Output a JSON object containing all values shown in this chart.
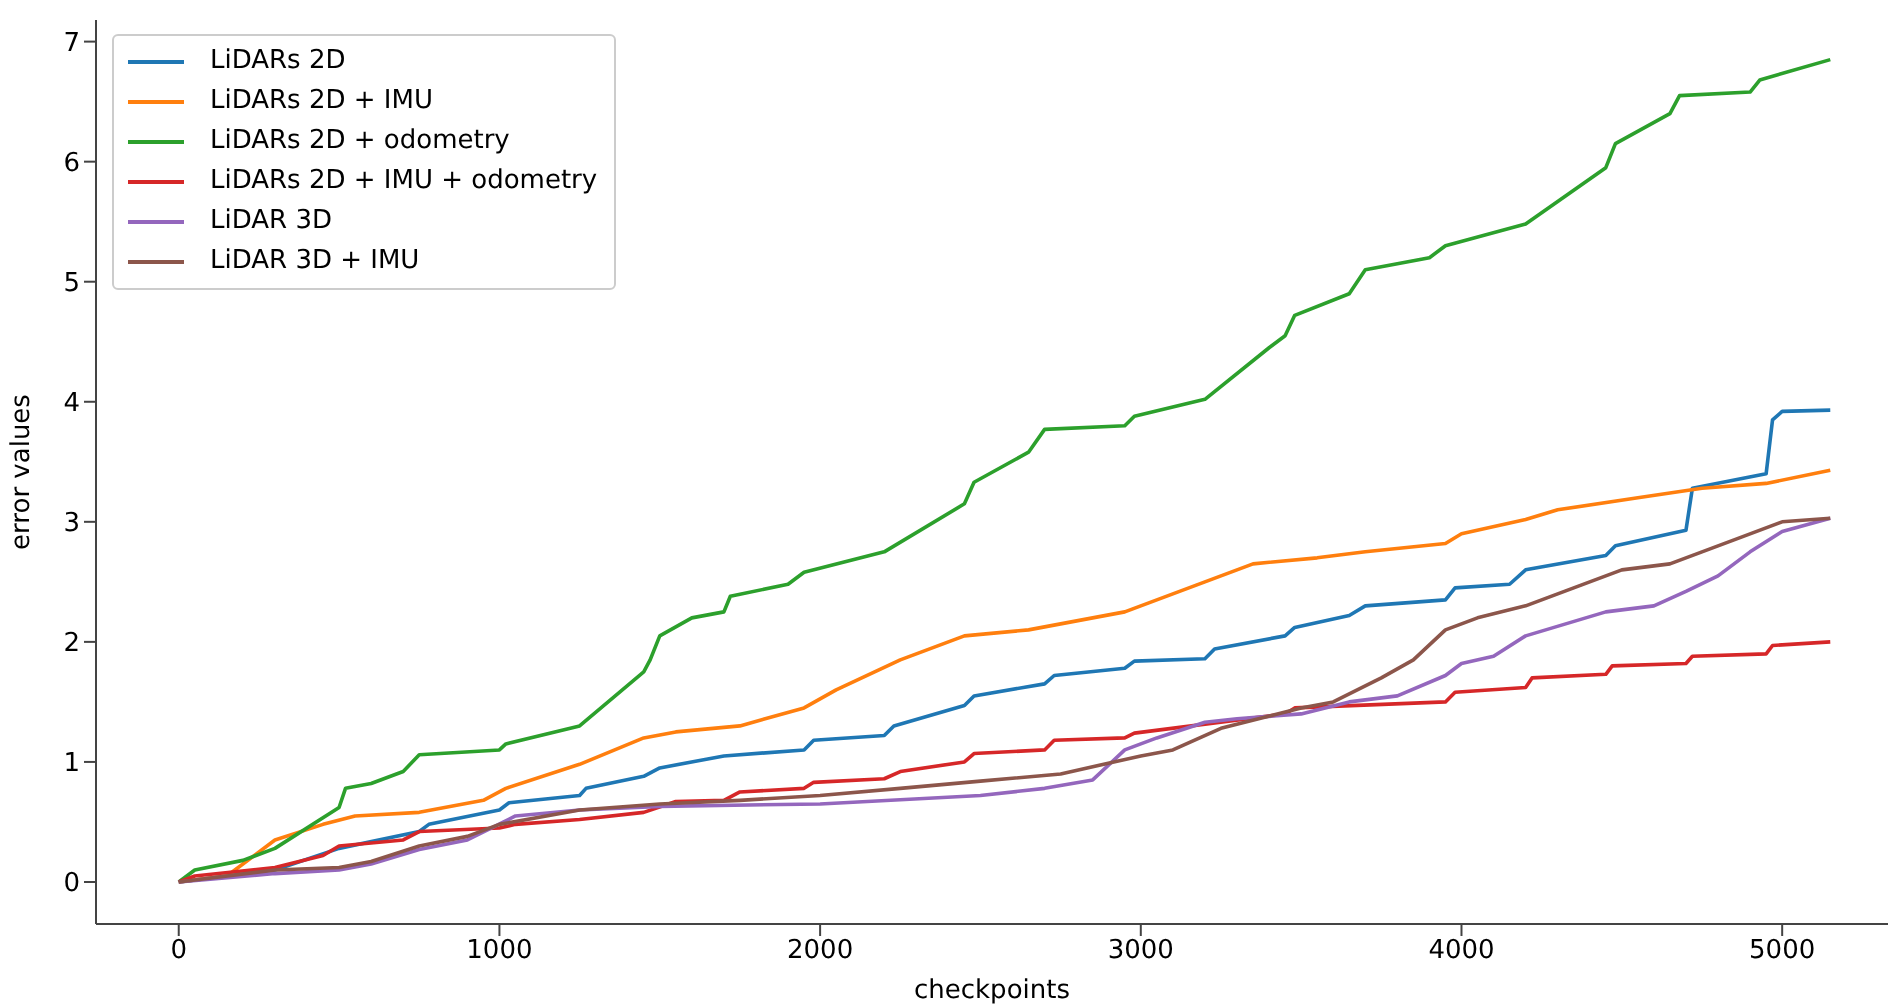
{
  "chart_data": {
    "type": "line",
    "xlabel": "checkpoints",
    "ylabel": "error values",
    "xlim": [
      -258,
      5330
    ],
    "ylim": [
      -0.35,
      7.18
    ],
    "xticks": [
      0,
      1000,
      2000,
      3000,
      4000,
      5000
    ],
    "yticks": [
      0,
      1,
      2,
      3,
      4,
      5,
      6,
      7
    ],
    "grid": false,
    "legend": "top left",
    "marker": "none",
    "line_style": "solid",
    "series": [
      {
        "name": "LiDARs 2D",
        "color": "#1f77b4",
        "x": [
          0,
          300,
          500,
          750,
          780,
          1000,
          1030,
          1250,
          1270,
          1450,
          1500,
          1700,
          1950,
          1980,
          2200,
          2230,
          2450,
          2480,
          2700,
          2730,
          2950,
          2980,
          3200,
          3230,
          3450,
          3480,
          3650,
          3700,
          3950,
          3980,
          4150,
          4200,
          4450,
          4480,
          4700,
          4720,
          4950,
          4970,
          5000,
          5150
        ],
        "values": [
          0,
          0.1,
          0.28,
          0.42,
          0.48,
          0.6,
          0.66,
          0.72,
          0.78,
          0.88,
          0.95,
          1.05,
          1.1,
          1.18,
          1.22,
          1.3,
          1.47,
          1.55,
          1.65,
          1.72,
          1.78,
          1.84,
          1.86,
          1.94,
          2.05,
          2.12,
          2.22,
          2.3,
          2.35,
          2.45,
          2.48,
          2.6,
          2.72,
          2.8,
          2.93,
          3.28,
          3.4,
          3.85,
          3.92,
          3.93
        ]
      },
      {
        "name": "LiDARs 2D + IMU",
        "color": "#ff7f0e",
        "x": [
          0,
          150,
          300,
          450,
          550,
          750,
          950,
          1020,
          1250,
          1450,
          1550,
          1750,
          1950,
          2050,
          2250,
          2450,
          2650,
          2750,
          2950,
          3000,
          3200,
          3350,
          3550,
          3700,
          3950,
          4000,
          4200,
          4300,
          4550,
          4750,
          4950,
          5150
        ],
        "values": [
          0,
          0.05,
          0.35,
          0.48,
          0.55,
          0.58,
          0.68,
          0.78,
          0.98,
          1.2,
          1.25,
          1.3,
          1.45,
          1.6,
          1.85,
          2.05,
          2.1,
          2.15,
          2.25,
          2.3,
          2.5,
          2.65,
          2.7,
          2.75,
          2.82,
          2.9,
          3.02,
          3.1,
          3.2,
          3.28,
          3.32,
          3.43
        ]
      },
      {
        "name": "LiDARs 2D + odometry",
        "color": "#2ca02c",
        "x": [
          0,
          50,
          200,
          300,
          500,
          520,
          600,
          700,
          750,
          1000,
          1020,
          1250,
          1450,
          1470,
          1500,
          1600,
          1700,
          1720,
          1900,
          1950,
          2200,
          2450,
          2480,
          2650,
          2700,
          2950,
          2980,
          3200,
          3400,
          3450,
          3480,
          3650,
          3700,
          3900,
          3950,
          4200,
          4450,
          4480,
          4650,
          4680,
          4900,
          4930,
          5150
        ],
        "values": [
          0,
          0.1,
          0.18,
          0.28,
          0.62,
          0.78,
          0.82,
          0.92,
          1.06,
          1.1,
          1.15,
          1.3,
          1.75,
          1.85,
          2.05,
          2.2,
          2.25,
          2.38,
          2.48,
          2.58,
          2.75,
          3.15,
          3.33,
          3.58,
          3.77,
          3.8,
          3.88,
          4.02,
          4.45,
          4.55,
          4.72,
          4.9,
          5.1,
          5.2,
          5.3,
          5.48,
          5.95,
          6.15,
          6.4,
          6.55,
          6.58,
          6.68,
          6.85
        ]
      },
      {
        "name": "LiDARs 2D + IMU + odometry",
        "color": "#d62728",
        "x": [
          0,
          50,
          300,
          450,
          500,
          700,
          750,
          1000,
          1050,
          1250,
          1450,
          1550,
          1700,
          1750,
          1950,
          1980,
          2200,
          2250,
          2450,
          2480,
          2700,
          2730,
          2950,
          2980,
          3450,
          3480,
          3950,
          3980,
          4200,
          4220,
          4450,
          4470,
          4700,
          4720,
          4950,
          4970,
          5150
        ],
        "values": [
          0,
          0.05,
          0.12,
          0.22,
          0.3,
          0.35,
          0.42,
          0.45,
          0.48,
          0.52,
          0.58,
          0.67,
          0.68,
          0.75,
          0.78,
          0.83,
          0.86,
          0.92,
          1.0,
          1.07,
          1.1,
          1.18,
          1.2,
          1.24,
          1.4,
          1.45,
          1.5,
          1.58,
          1.62,
          1.7,
          1.73,
          1.8,
          1.82,
          1.88,
          1.9,
          1.97,
          2.0
        ]
      },
      {
        "name": "LiDAR 3D",
        "color": "#9467bd",
        "x": [
          0,
          300,
          500,
          600,
          750,
          900,
          1050,
          1250,
          1500,
          2000,
          2500,
          2700,
          2850,
          2950,
          3050,
          3200,
          3300,
          3500,
          3650,
          3800,
          3950,
          4000,
          4100,
          4200,
          4450,
          4600,
          4700,
          4800,
          4900,
          5000,
          5150
        ],
        "values": [
          0,
          0.07,
          0.1,
          0.15,
          0.27,
          0.35,
          0.55,
          0.6,
          0.63,
          0.65,
          0.72,
          0.78,
          0.85,
          1.1,
          1.2,
          1.33,
          1.36,
          1.4,
          1.5,
          1.55,
          1.72,
          1.82,
          1.88,
          2.05,
          2.25,
          2.3,
          2.42,
          2.55,
          2.75,
          2.92,
          3.03
        ]
      },
      {
        "name": "LiDAR 3D + IMU",
        "color": "#8c564b",
        "x": [
          0,
          300,
          500,
          600,
          750,
          900,
          1000,
          1250,
          1500,
          1750,
          2000,
          2250,
          2500,
          2750,
          3000,
          3100,
          3250,
          3500,
          3600,
          3750,
          3850,
          3950,
          4050,
          4200,
          4350,
          4500,
          4650,
          4750,
          4850,
          5000,
          5150
        ],
        "values": [
          0,
          0.1,
          0.12,
          0.17,
          0.3,
          0.38,
          0.48,
          0.6,
          0.65,
          0.68,
          0.72,
          0.78,
          0.84,
          0.9,
          1.05,
          1.1,
          1.28,
          1.45,
          1.5,
          1.7,
          1.85,
          2.1,
          2.2,
          2.3,
          2.45,
          2.6,
          2.65,
          2.75,
          2.85,
          3.0,
          3.03
        ]
      }
    ]
  }
}
